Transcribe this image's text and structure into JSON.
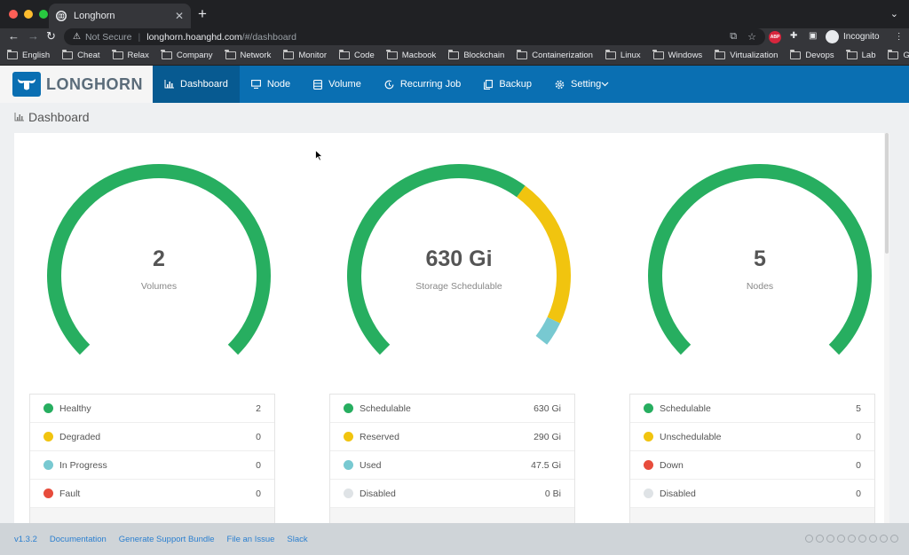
{
  "browser": {
    "tab_title": "Longhorn",
    "security_label": "Not Secure",
    "url_host": "longhorn.hoanghd.com",
    "url_path": "/#/dashboard",
    "profile_label": "Incognito",
    "extension_label": "ABP",
    "bookmarks": [
      "English",
      "Cheat",
      "Relax",
      "Company",
      "Network",
      "Monitor",
      "Code",
      "Macbook",
      "Blockchain",
      "Containerization",
      "Linux",
      "Windows",
      "Virtualization",
      "Devops",
      "Lab",
      "Git"
    ]
  },
  "app": {
    "brand": "LONGHORN",
    "nav": [
      {
        "label": "Dashboard",
        "icon": "bar-chart-icon",
        "active": true
      },
      {
        "label": "Node",
        "icon": "monitor-icon",
        "active": false
      },
      {
        "label": "Volume",
        "icon": "database-icon",
        "active": false
      },
      {
        "label": "Recurring Job",
        "icon": "clock-icon",
        "active": false
      },
      {
        "label": "Backup",
        "icon": "copy-icon",
        "active": false
      },
      {
        "label": "Setting",
        "icon": "gear-icon",
        "active": false
      }
    ],
    "page_title": "Dashboard"
  },
  "gauges": [
    {
      "value": "2",
      "label": "Volumes",
      "segments": [
        {
          "fraction": 1.0,
          "color": "#27ae60"
        }
      ],
      "legend": [
        {
          "label": "Healthy",
          "value": "2",
          "color": "#27ae60"
        },
        {
          "label": "Degraded",
          "value": "0",
          "color": "#f1c40f"
        },
        {
          "label": "In Progress",
          "value": "0",
          "color": "#78c9d1"
        },
        {
          "label": "Fault",
          "value": "0",
          "color": "#e74c3c"
        }
      ]
    },
    {
      "value": "630 Gi",
      "label": "Storage Schedulable",
      "segments": [
        {
          "fraction": 0.6345,
          "color": "#27ae60"
        },
        {
          "fraction": 0.2921,
          "color": "#f1c40f"
        },
        {
          "fraction": 0.0478,
          "color": "#78c9d1"
        }
      ],
      "legend": [
        {
          "label": "Schedulable",
          "value": "630 Gi",
          "color": "#27ae60"
        },
        {
          "label": "Reserved",
          "value": "290 Gi",
          "color": "#f1c40f"
        },
        {
          "label": "Used",
          "value": "47.5 Gi",
          "color": "#78c9d1"
        },
        {
          "label": "Disabled",
          "value": "0 Bi",
          "color": "#dfe3e6"
        }
      ]
    },
    {
      "value": "5",
      "label": "Nodes",
      "segments": [
        {
          "fraction": 1.0,
          "color": "#27ae60"
        }
      ],
      "legend": [
        {
          "label": "Schedulable",
          "value": "5",
          "color": "#27ae60"
        },
        {
          "label": "Unschedulable",
          "value": "0",
          "color": "#f1c40f"
        },
        {
          "label": "Down",
          "value": "0",
          "color": "#e74c3c"
        },
        {
          "label": "Disabled",
          "value": "0",
          "color": "#dfe3e6"
        }
      ]
    }
  ],
  "footer": {
    "links": [
      "v1.3.2",
      "Documentation",
      "Generate Support Bundle",
      "File an Issue",
      "Slack"
    ]
  }
}
